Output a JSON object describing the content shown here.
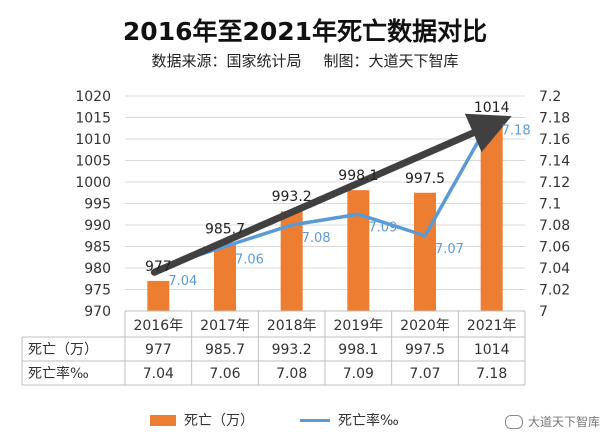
{
  "title": "2016年至2021年死亡数据对比",
  "subtitle": {
    "source": "数据来源：国家统计局",
    "maker": "制图：大道天下智库"
  },
  "colors": {
    "bar": "#ed7d31",
    "line": "#5b9bd5",
    "trend_arrow": "#404040",
    "grid": "#d9d9d9"
  },
  "chart_data": {
    "type": "bar+line",
    "categories": [
      "2016年",
      "2017年",
      "2018年",
      "2019年",
      "2020年",
      "2021年"
    ],
    "series": [
      {
        "name": "死亡（万）",
        "type": "bar",
        "axis": "left",
        "values": [
          977,
          985.7,
          993.2,
          998.1,
          997.5,
          1014
        ],
        "value_labels": [
          "977",
          "985.7",
          "993.2",
          "998.1",
          "997.5",
          "1014"
        ]
      },
      {
        "name": "死亡率‰",
        "type": "line",
        "axis": "right",
        "values": [
          7.04,
          7.06,
          7.08,
          7.09,
          7.07,
          7.18
        ],
        "value_labels": [
          "7.04",
          "7.06",
          "7.08",
          "7.09",
          "7.07",
          "7.18"
        ]
      }
    ],
    "y_left": {
      "min": 970,
      "max": 1020,
      "ticks": [
        "970",
        "975",
        "980",
        "985",
        "990",
        "995",
        "1000",
        "1005",
        "1010",
        "1015",
        "1020"
      ]
    },
    "y_right": {
      "min": 7,
      "max": 7.2,
      "ticks": [
        "7",
        "7.02",
        "7.04",
        "7.06",
        "7.08",
        "7.1",
        "7.12",
        "7.14",
        "7.16",
        "7.18",
        "7.2"
      ]
    },
    "trend_arrow": {
      "from": "2016年",
      "to": "2021年",
      "description": "upward trend"
    },
    "data_table": {
      "rows": [
        {
          "label": "死亡（万）",
          "values": [
            "977",
            "985.7",
            "993.2",
            "998.1",
            "997.5",
            "1014"
          ]
        },
        {
          "label": "死亡率‰",
          "values": [
            "7.04",
            "7.06",
            "7.08",
            "7.09",
            "7.07",
            "7.18"
          ]
        }
      ]
    },
    "legend": {
      "position": "bottom",
      "items": [
        "死亡（万）",
        "死亡率‰"
      ]
    }
  },
  "watermark": "大道天下智库"
}
